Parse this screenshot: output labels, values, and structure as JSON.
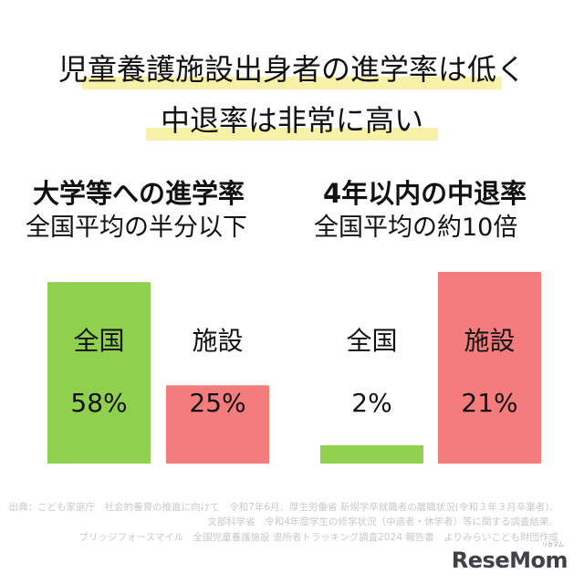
{
  "headline": {
    "line1": "児童養護施設出身者の進学率は低く",
    "line2": "中退率は非常に高い",
    "highlight_color": "#f7f2a8"
  },
  "chart_data": [
    {
      "type": "bar",
      "title": "大学等への進学率",
      "subtitle": "全国平均の半分以下",
      "categories": [
        "全国",
        "施設"
      ],
      "values": [
        58,
        25
      ],
      "value_labels": [
        "58%",
        "25%"
      ],
      "colors": [
        "#8fd14f",
        "#f47c7c"
      ],
      "ylim": [
        0,
        70
      ]
    },
    {
      "type": "bar",
      "title": "4年以内の中退率",
      "subtitle": "全国平均の約10倍",
      "categories": [
        "全国",
        "施設"
      ],
      "values": [
        2,
        21
      ],
      "value_labels": [
        "2%",
        "21%"
      ],
      "colors": [
        "#8fd14f",
        "#f47c7c"
      ],
      "ylim": [
        0,
        24
      ]
    }
  ],
  "source": {
    "line1": "出典：こども家庭庁　社会的養育の推進に向けて　令和7年6月、厚生労働省 新規学卒就職者の離職状況(令和３年３月卒業者)、",
    "line2": "文部科学省　令和4年度学生の修学状況（中退者・休学者）等に関する調査結果、",
    "line3": "ブリッジフォースマイル　全国児童養護施設 退所者トラッキング調査2024 報告書　よりみらいこども財団作成"
  },
  "logo": {
    "text": "ReseMom",
    "ruby": "リセマム"
  }
}
